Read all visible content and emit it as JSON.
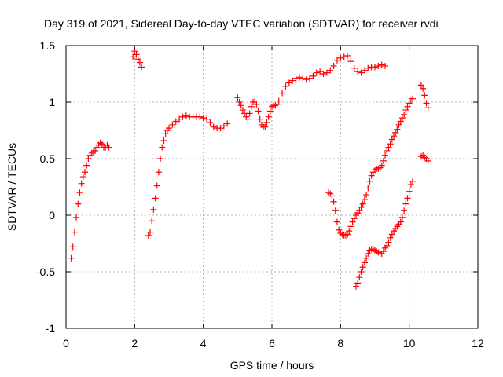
{
  "chart_data": {
    "type": "scatter",
    "title": "Day 319 of 2021, Sidereal Day-to-day VTEC variation (SDTVAR) for receiver rvdi",
    "xlabel": "GPS time / hours",
    "ylabel": "SDTVAR / TECUs",
    "xlim": [
      0,
      12
    ],
    "ylim": [
      -1,
      1.5
    ],
    "xticks": [
      0,
      2,
      4,
      6,
      8,
      10,
      12
    ],
    "xtick_labels": [
      "0",
      "2",
      "4",
      "6",
      "8",
      "10",
      "12"
    ],
    "yticks": [
      -1,
      -0.5,
      0,
      0.5,
      1,
      1.5
    ],
    "ytick_labels": [
      "-1",
      "-0.5",
      "0",
      "0.5",
      "1",
      "1.5"
    ],
    "grid": true,
    "marker": "+",
    "color": "#ff0000",
    "series": [
      {
        "x": [
          0.15,
          0.2,
          0.25,
          0.3,
          0.35,
          0.4,
          0.45,
          0.5,
          0.55,
          0.6,
          0.65,
          0.7,
          0.75,
          0.8,
          0.85,
          0.9,
          0.95,
          1.0,
          1.05,
          1.1,
          1.15,
          1.2,
          1.25
        ],
        "y": [
          -0.38,
          -0.28,
          -0.15,
          -0.02,
          0.1,
          0.2,
          0.28,
          0.34,
          0.38,
          0.44,
          0.5,
          0.53,
          0.55,
          0.56,
          0.57,
          0.6,
          0.62,
          0.64,
          0.63,
          0.6,
          0.6,
          0.62,
          0.6
        ]
      },
      {
        "x": [
          1.95,
          2.0,
          2.05,
          2.1,
          2.15,
          2.2
        ],
        "y": [
          1.4,
          1.45,
          1.42,
          1.38,
          1.35,
          1.31
        ]
      },
      {
        "x": [
          2.4,
          2.45,
          2.5,
          2.55,
          2.6,
          2.65,
          2.7,
          2.75,
          2.8,
          2.85,
          2.9,
          2.95,
          3.0,
          3.1,
          3.2,
          3.3,
          3.4,
          3.5,
          3.6,
          3.7,
          3.8,
          3.9,
          4.0,
          4.1,
          4.2,
          4.3,
          4.4,
          4.5,
          4.6,
          4.7
        ],
        "y": [
          -0.18,
          -0.15,
          -0.05,
          0.05,
          0.15,
          0.26,
          0.38,
          0.5,
          0.6,
          0.66,
          0.72,
          0.75,
          0.77,
          0.8,
          0.83,
          0.85,
          0.87,
          0.88,
          0.87,
          0.87,
          0.87,
          0.87,
          0.86,
          0.85,
          0.82,
          0.78,
          0.77,
          0.77,
          0.79,
          0.81
        ]
      },
      {
        "x": [
          5.0,
          5.05,
          5.1,
          5.15,
          5.2,
          5.25,
          5.3,
          5.35,
          5.4,
          5.45,
          5.5,
          5.55,
          5.6,
          5.65,
          5.7,
          5.75,
          5.8,
          5.85,
          5.9,
          5.95,
          6.0,
          6.05,
          6.1,
          6.15,
          6.2,
          6.3,
          6.4,
          6.5,
          6.6,
          6.7,
          6.8,
          6.9,
          7.0,
          7.1,
          7.2,
          7.3,
          7.4,
          7.5,
          7.6,
          7.7,
          7.8,
          7.9,
          8.0,
          8.1,
          8.2,
          8.3,
          8.4,
          8.5,
          8.6,
          8.7,
          8.8,
          8.9,
          9.0,
          9.1,
          9.2,
          9.3
        ],
        "y": [
          1.04,
          1.0,
          0.97,
          0.93,
          0.9,
          0.87,
          0.85,
          0.9,
          0.96,
          1.0,
          1.01,
          0.98,
          0.92,
          0.85,
          0.8,
          0.78,
          0.78,
          0.82,
          0.87,
          0.92,
          0.96,
          0.97,
          0.97,
          0.98,
          1.01,
          1.08,
          1.14,
          1.17,
          1.19,
          1.21,
          1.22,
          1.21,
          1.2,
          1.21,
          1.23,
          1.26,
          1.27,
          1.25,
          1.26,
          1.28,
          1.32,
          1.37,
          1.39,
          1.4,
          1.41,
          1.36,
          1.3,
          1.27,
          1.26,
          1.28,
          1.3,
          1.31,
          1.31,
          1.32,
          1.33,
          1.32
        ]
      },
      {
        "x": [
          7.65,
          7.7,
          7.75,
          7.8,
          7.85,
          7.9,
          7.95,
          8.0,
          8.05,
          8.1,
          8.15,
          8.2,
          8.25,
          8.3,
          8.35,
          8.4,
          8.45,
          8.5,
          8.55,
          8.6,
          8.65,
          8.7,
          8.75,
          8.8,
          8.85,
          8.9,
          8.95,
          9.0,
          9.05,
          9.1,
          9.15,
          9.2,
          9.25,
          9.3,
          9.35,
          9.4,
          9.45,
          9.5,
          9.55,
          9.6,
          9.65,
          9.7,
          9.75,
          9.8,
          9.85,
          9.9,
          9.95,
          10.0,
          10.05,
          10.1
        ],
        "y": [
          0.2,
          0.19,
          0.17,
          0.12,
          0.04,
          -0.06,
          -0.13,
          -0.16,
          -0.17,
          -0.18,
          -0.18,
          -0.17,
          -0.14,
          -0.1,
          -0.06,
          -0.03,
          0.0,
          0.02,
          0.04,
          0.07,
          0.1,
          0.14,
          0.18,
          0.24,
          0.3,
          0.35,
          0.38,
          0.4,
          0.41,
          0.41,
          0.42,
          0.44,
          0.48,
          0.53,
          0.57,
          0.6,
          0.63,
          0.67,
          0.7,
          0.73,
          0.76,
          0.8,
          0.83,
          0.86,
          0.89,
          0.93,
          0.96,
          0.99,
          1.01,
          1.03
        ]
      },
      {
        "x": [
          8.45,
          8.5,
          8.55,
          8.6,
          8.65,
          8.7,
          8.75,
          8.8,
          8.85,
          8.9,
          8.95,
          9.0,
          9.05,
          9.1,
          9.15,
          9.2,
          9.25,
          9.3,
          9.35,
          9.4,
          9.45,
          9.5,
          9.55,
          9.6,
          9.65,
          9.7,
          9.75,
          9.8,
          9.85,
          9.9,
          9.95,
          10.0,
          10.05,
          10.1
        ],
        "y": [
          -0.63,
          -0.6,
          -0.55,
          -0.5,
          -0.46,
          -0.42,
          -0.38,
          -0.34,
          -0.31,
          -0.3,
          -0.3,
          -0.31,
          -0.32,
          -0.33,
          -0.34,
          -0.34,
          -0.32,
          -0.29,
          -0.27,
          -0.24,
          -0.2,
          -0.17,
          -0.14,
          -0.12,
          -0.1,
          -0.08,
          -0.06,
          -0.02,
          0.04,
          0.1,
          0.15,
          0.21,
          0.27,
          0.3
        ]
      },
      {
        "x": [
          10.35,
          10.4,
          10.45,
          10.5,
          10.55
        ],
        "y": [
          1.15,
          1.12,
          1.06,
          0.99,
          0.95
        ]
      },
      {
        "x": [
          10.35,
          10.4,
          10.45,
          10.5,
          10.55
        ],
        "y": [
          0.52,
          0.53,
          0.51,
          0.5,
          0.48
        ]
      }
    ]
  }
}
